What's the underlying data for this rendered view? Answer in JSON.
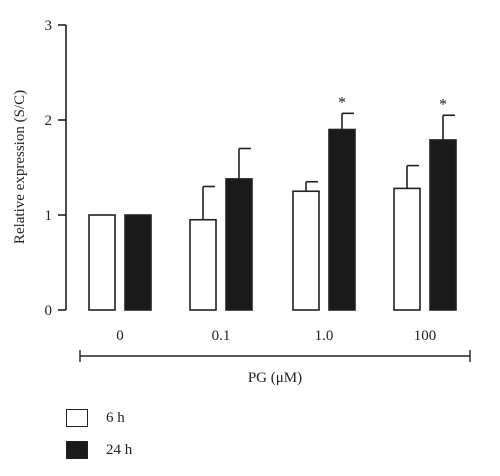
{
  "chart_data": {
    "type": "bar",
    "categories": [
      "0",
      "0.1",
      "1.0",
      "100"
    ],
    "series": [
      {
        "name": "6 h",
        "color": "#ffffff",
        "values": [
          1.0,
          0.95,
          1.25,
          1.28
        ],
        "errors": [
          0.0,
          0.35,
          0.1,
          0.24
        ],
        "significant": [
          false,
          false,
          false,
          false
        ]
      },
      {
        "name": "24 h",
        "color": "#1a1a1a",
        "values": [
          1.0,
          1.38,
          1.9,
          1.79
        ],
        "errors": [
          0.0,
          0.32,
          0.17,
          0.26
        ],
        "significant": [
          false,
          false,
          true,
          true
        ]
      }
    ],
    "title": "",
    "xlabel": "PG (μM)",
    "ylabel": "Relative expression (S/C)",
    "ylim": [
      0,
      3
    ],
    "yticks": [
      "0",
      "1",
      "2",
      "3"
    ],
    "significance_mark": "*",
    "legend_position": "bottom-left",
    "grid": false
  }
}
